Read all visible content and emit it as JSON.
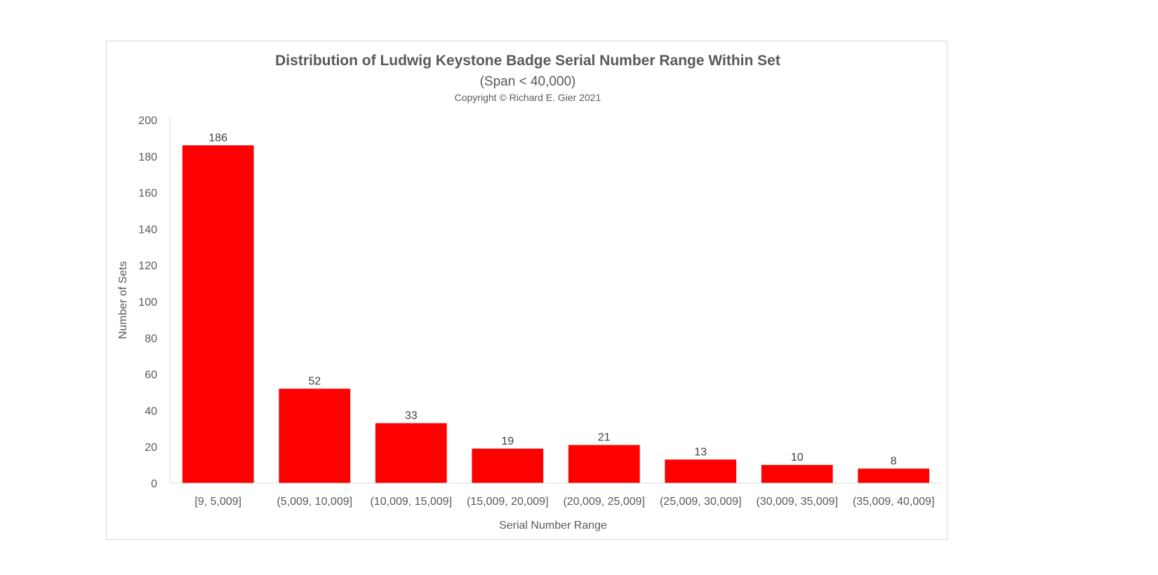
{
  "chart_data": {
    "type": "bar",
    "title": "Distribution of Ludwig Keystone Badge Serial Number Range Within Set",
    "subtitle": "(Span < 40,000)",
    "annotation": "Copyright © Richard E. Gier 2021",
    "xlabel": "Serial Number Range",
    "ylabel": "Number of Sets",
    "categories": [
      "[9, 5,009]",
      "(5,009, 10,009]",
      "(10,009, 15,009]",
      "(15,009, 20,009]",
      "(20,009, 25,009]",
      "(25,009, 30,009]",
      "(30,009, 35,009]",
      "(35,009, 40,009]"
    ],
    "values": [
      186,
      52,
      33,
      19,
      21,
      13,
      10,
      8
    ],
    "ylim": [
      0,
      200
    ],
    "yticks": [
      0,
      20,
      40,
      60,
      80,
      100,
      120,
      140,
      160,
      180,
      200
    ],
    "grid": false,
    "legend": "none",
    "bar_color": "#ff0000"
  }
}
